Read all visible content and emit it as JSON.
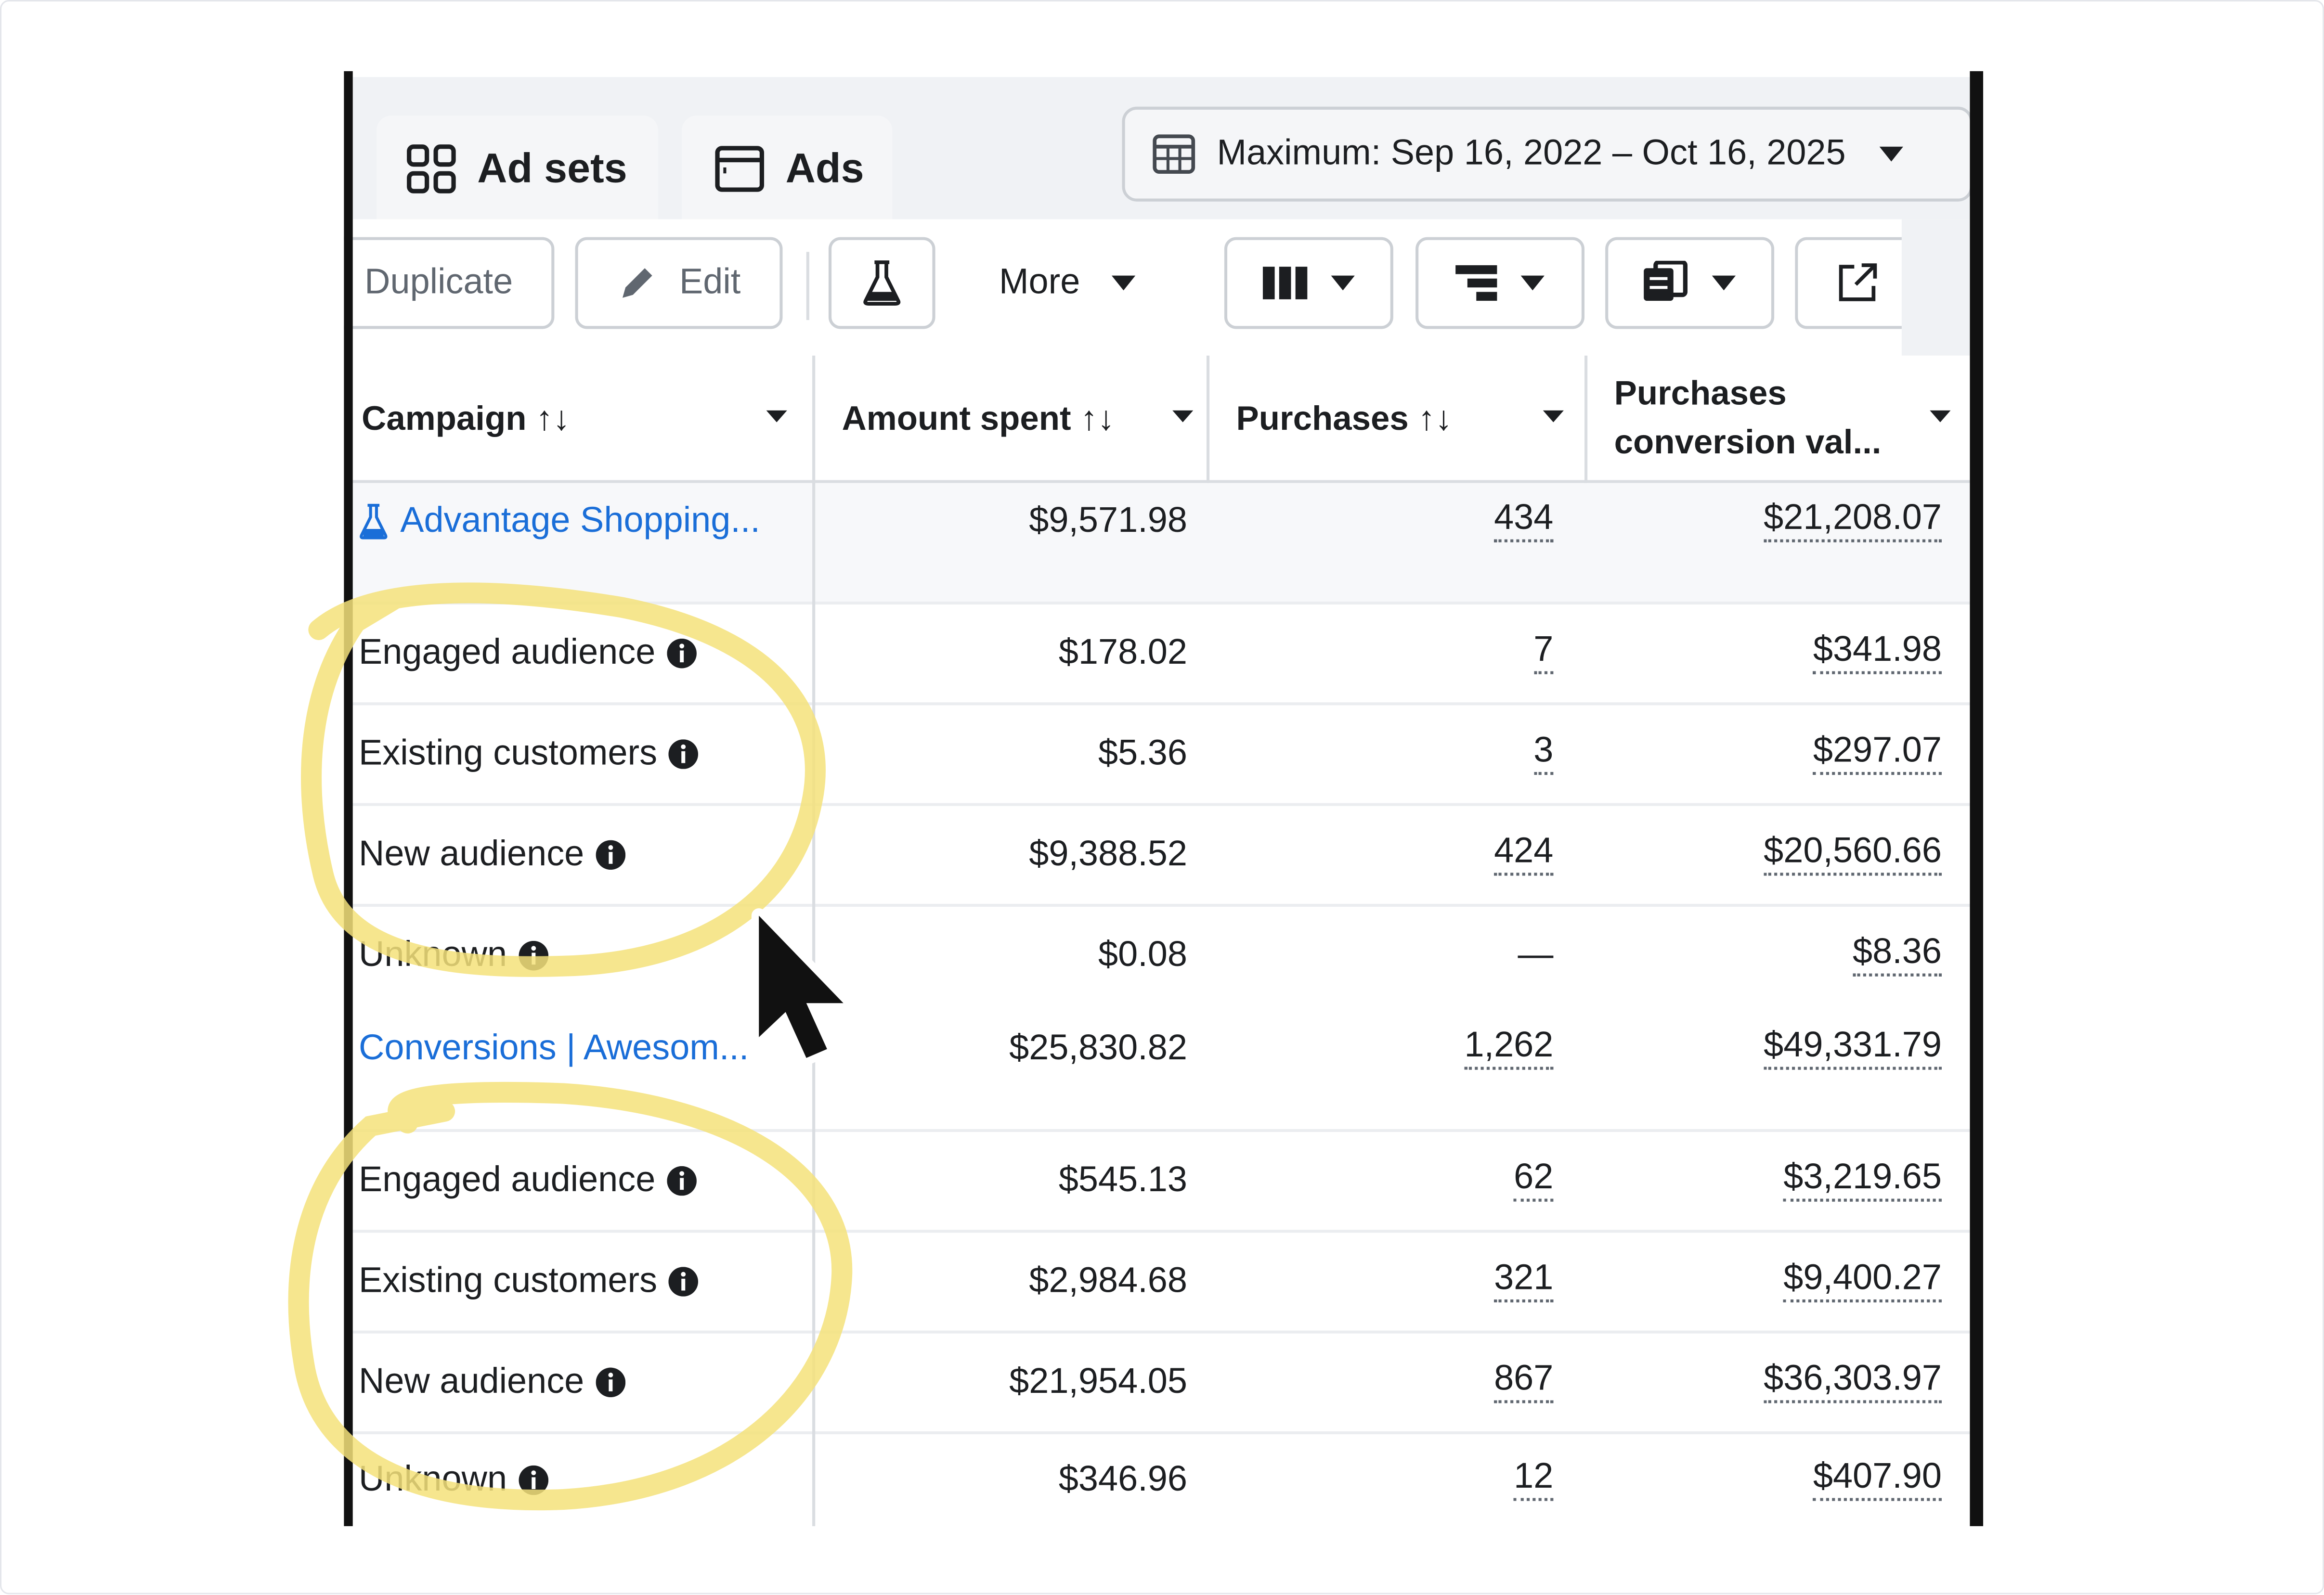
{
  "tabs": [
    {
      "label": "Ad sets",
      "icon": "grid-icon"
    },
    {
      "label": "Ads",
      "icon": "ad-window-icon"
    }
  ],
  "date_range": {
    "label": "Maximum: Sep 16, 2022 – Oct 16, 2025",
    "icon": "calendar-icon"
  },
  "toolbar": {
    "duplicate_label": "Duplicate",
    "edit_label": "Edit",
    "more_label": "More",
    "icons": [
      "flask-icon",
      "columns-icon",
      "breakdown-icon",
      "reports-icon",
      "export-icon"
    ]
  },
  "table": {
    "headers": {
      "campaign": "Campaign ↑↓",
      "amount_spent": "Amount spent ↑↓",
      "purchases": "Purchases ↑↓",
      "conversion_value_line1": "Purchases",
      "conversion_value_line2": "conversion val..."
    },
    "rows": [
      {
        "type": "campaign",
        "name": "Advantage Shopping...",
        "icon": "flask-icon",
        "amount_spent": "$9,571.98",
        "purchases": "434",
        "conversion_value": "$21,208.07"
      },
      {
        "type": "segment",
        "name": "Engaged audience",
        "amount_spent": "$178.02",
        "purchases": "7",
        "conversion_value": "$341.98"
      },
      {
        "type": "segment",
        "name": "Existing customers",
        "amount_spent": "$5.36",
        "purchases": "3",
        "conversion_value": "$297.07"
      },
      {
        "type": "segment",
        "name": "New audience",
        "amount_spent": "$9,388.52",
        "purchases": "424",
        "conversion_value": "$20,560.66"
      },
      {
        "type": "segment",
        "name": "Unknown",
        "amount_spent": "$0.08",
        "purchases": "—",
        "conversion_value": "$8.36"
      },
      {
        "type": "campaign",
        "name": "Conversions | Awesom...",
        "amount_spent": "$25,830.82",
        "purchases": "1,262",
        "conversion_value": "$49,331.79"
      },
      {
        "type": "segment",
        "name": "Engaged audience",
        "amount_spent": "$545.13",
        "purchases": "62",
        "conversion_value": "$3,219.65"
      },
      {
        "type": "segment",
        "name": "Existing customers",
        "amount_spent": "$2,984.68",
        "purchases": "321",
        "conversion_value": "$9,400.27"
      },
      {
        "type": "segment",
        "name": "New audience",
        "amount_spent": "$21,954.05",
        "purchases": "867",
        "conversion_value": "$36,303.97"
      },
      {
        "type": "segment",
        "name": "Unknown",
        "amount_spent": "$346.96",
        "purchases": "12",
        "conversion_value": "$407.90"
      }
    ]
  },
  "colors": {
    "link": "#1a6ed8",
    "highlight": "#f5e27a"
  }
}
